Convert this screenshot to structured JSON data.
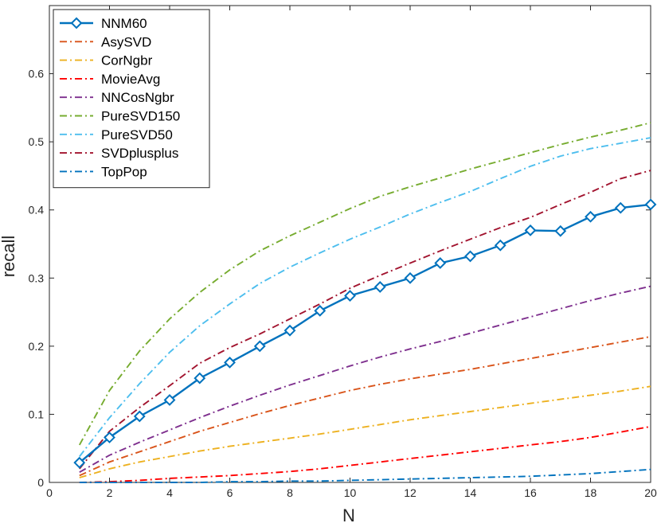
{
  "chart_data": {
    "type": "line",
    "xlabel": "N",
    "ylabel": "recall",
    "xlim": [
      0,
      20
    ],
    "ylim": [
      0,
      0.7
    ],
    "xticks": [
      0,
      2,
      4,
      6,
      8,
      10,
      12,
      14,
      16,
      18,
      20
    ],
    "yticks": [
      0,
      0.1,
      0.2,
      0.3,
      0.4,
      0.5,
      0.6
    ],
    "ytick_labels": [
      "0",
      "0.1",
      "0.2",
      "0.3",
      "0.4",
      "0.5",
      "0.6"
    ],
    "legend_position": "top-left",
    "x": [
      1,
      2,
      3,
      4,
      5,
      6,
      7,
      8,
      9,
      10,
      11,
      12,
      13,
      14,
      15,
      16,
      17,
      18,
      19,
      20
    ],
    "series": [
      {
        "name": "NNM60",
        "color": "#0072BD",
        "style": "solid-marker",
        "values": [
          0.029,
          0.066,
          0.097,
          0.121,
          0.153,
          0.176,
          0.2,
          0.223,
          0.252,
          0.274,
          0.287,
          0.3,
          0.322,
          0.332,
          0.348,
          0.37,
          0.369,
          0.39,
          0.403,
          0.408
        ]
      },
      {
        "name": "AsySVD",
        "color": "#D95319",
        "style": "dashdot",
        "values": [
          0.01,
          0.03,
          0.045,
          0.06,
          0.075,
          0.088,
          0.101,
          0.113,
          0.124,
          0.135,
          0.144,
          0.152,
          0.159,
          0.166,
          0.174,
          0.182,
          0.19,
          0.198,
          0.206,
          0.214
        ]
      },
      {
        "name": "CorNgbr",
        "color": "#EDB120",
        "style": "dashdot",
        "values": [
          0.007,
          0.02,
          0.03,
          0.038,
          0.046,
          0.053,
          0.059,
          0.065,
          0.071,
          0.078,
          0.085,
          0.092,
          0.098,
          0.104,
          0.11,
          0.116,
          0.122,
          0.128,
          0.134,
          0.141
        ]
      },
      {
        "name": "MovieAvg",
        "color": "#FF0000",
        "style": "dashdot",
        "values": [
          0.0,
          0.001,
          0.003,
          0.006,
          0.008,
          0.01,
          0.013,
          0.016,
          0.02,
          0.025,
          0.03,
          0.035,
          0.04,
          0.045,
          0.05,
          0.055,
          0.06,
          0.066,
          0.074,
          0.082
        ]
      },
      {
        "name": "NNCosNgbr",
        "color": "#7E2F8E",
        "style": "dashdot",
        "values": [
          0.015,
          0.04,
          0.059,
          0.077,
          0.095,
          0.112,
          0.128,
          0.143,
          0.157,
          0.171,
          0.184,
          0.196,
          0.207,
          0.219,
          0.231,
          0.243,
          0.255,
          0.267,
          0.278,
          0.288
        ]
      },
      {
        "name": "PureSVD150",
        "color": "#77AC30",
        "style": "dashdot",
        "values": [
          0.055,
          0.135,
          0.193,
          0.24,
          0.279,
          0.312,
          0.34,
          0.362,
          0.382,
          0.402,
          0.42,
          0.434,
          0.447,
          0.46,
          0.472,
          0.484,
          0.496,
          0.507,
          0.517,
          0.528
        ]
      },
      {
        "name": "PureSVD50",
        "color": "#4DBEEE",
        "style": "dashdot",
        "values": [
          0.038,
          0.095,
          0.145,
          0.191,
          0.23,
          0.262,
          0.292,
          0.316,
          0.337,
          0.357,
          0.375,
          0.394,
          0.411,
          0.427,
          0.446,
          0.464,
          0.479,
          0.49,
          0.498,
          0.506
        ]
      },
      {
        "name": "SVDplusplus",
        "color": "#A2142F",
        "style": "dashdot",
        "values": [
          0.02,
          0.075,
          0.11,
          0.142,
          0.175,
          0.198,
          0.218,
          0.24,
          0.262,
          0.285,
          0.304,
          0.322,
          0.34,
          0.357,
          0.374,
          0.389,
          0.408,
          0.426,
          0.446,
          0.458
        ]
      },
      {
        "name": "TopPop",
        "color": "#0072BD",
        "style": "dashdot",
        "values": [
          0.0,
          0.0,
          0.0,
          0.0,
          0.0,
          0.001,
          0.001,
          0.002,
          0.002,
          0.003,
          0.004,
          0.005,
          0.006,
          0.007,
          0.008,
          0.009,
          0.011,
          0.013,
          0.016,
          0.019
        ]
      }
    ]
  }
}
